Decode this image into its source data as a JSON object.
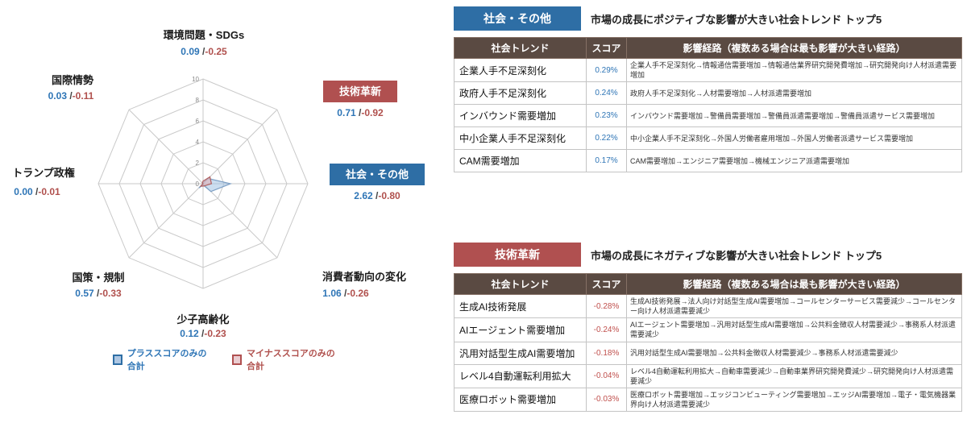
{
  "colors": {
    "accent_blue": "#2e6ea5",
    "accent_red": "#b05050",
    "score_blue": "#2e75b6",
    "score_red": "#c0504d",
    "table_header_bg": "#5a4a42",
    "plus_fill": "#aec7e3",
    "minus_fill": "#eacdd1"
  },
  "chart_data": {
    "type": "radar",
    "value_separator": " /",
    "scale": {
      "min": 0,
      "max": 10,
      "ticks": [
        0,
        2,
        4,
        6,
        8,
        10
      ]
    },
    "axes": [
      {
        "label": "環境問題・SDGs",
        "plus": "0.09",
        "minus": "-0.25",
        "highlight": null
      },
      {
        "label": "技術革新",
        "plus": "0.71",
        "minus": "-0.92",
        "highlight": "red"
      },
      {
        "label": "社会・その他",
        "plus": "2.62",
        "minus": "-0.80",
        "highlight": "blue"
      },
      {
        "label": "消費者動向の変化",
        "plus": "1.06",
        "minus": "-0.26",
        "highlight": null
      },
      {
        "label": "少子高齢化",
        "plus": "0.12",
        "minus": "-0.23",
        "highlight": null
      },
      {
        "label": "国策・規制",
        "plus": "0.57",
        "minus": "-0.33",
        "highlight": null
      },
      {
        "label": "トランプ政権",
        "plus": "0.00",
        "minus": "-0.01",
        "highlight": null
      },
      {
        "label": "国際情勢",
        "plus": "0.03",
        "minus": "-0.11",
        "highlight": null
      }
    ],
    "legend": [
      {
        "label": "プラススコアのみの合計",
        "series": "plus"
      },
      {
        "label": "マイナススコアのみの合計",
        "series": "minus"
      }
    ]
  },
  "tables": [
    {
      "badge": "社会・その他",
      "badge_color": "blue",
      "title": "市場の成長にポジティブな影響が大きい社会トレンド トップ5",
      "columns": [
        "社会トレンド",
        "スコア",
        "影響経路（複数ある場合は最も影響が大きい経路）"
      ],
      "rows": [
        {
          "trend": "企業人手不足深刻化",
          "score": "0.29%",
          "path": "企業人手不足深刻化→情報通信需要増加→情報通信業界研究開発費増加→研究開発向け人材派遣需要増加"
        },
        {
          "trend": "政府人手不足深刻化",
          "score": "0.24%",
          "path": "政府人手不足深刻化→人材需要増加→人材派遣需要増加"
        },
        {
          "trend": "インバウンド需要増加",
          "score": "0.23%",
          "path": "インバウンド需要増加→警備員需要増加→警備員派遣需要増加→警備員派遣サービス需要増加"
        },
        {
          "trend": "中小企業人手不足深刻化",
          "score": "0.22%",
          "path": "中小企業人手不足深刻化→外国人労働者雇用増加→外国人労働者派遣サービス需要増加"
        },
        {
          "trend": "CAM需要増加",
          "score": "0.17%",
          "path": "CAM需要増加→エンジニア需要増加→機械エンジニア派遣需要増加"
        }
      ]
    },
    {
      "badge": "技術革新",
      "badge_color": "red",
      "title": "市場の成長にネガティブな影響が大きい社会トレンド トップ5",
      "columns": [
        "社会トレンド",
        "スコア",
        "影響経路（複数ある場合は最も影響が大きい経路）"
      ],
      "rows": [
        {
          "trend": "生成AI技術発展",
          "score": "-0.28%",
          "path": "生成AI技術発展→法人向け対話型生成AI需要増加→コールセンターサービス需要減少→コールセンター向け人材派遣需要減少"
        },
        {
          "trend": "AIエージェント需要増加",
          "score": "-0.24%",
          "path": "AIエージェント需要増加→汎用対話型生成AI需要増加→公共料金徴収人材需要減少→事務系人材派遣需要減少"
        },
        {
          "trend": "汎用対話型生成AI需要増加",
          "score": "-0.18%",
          "path": "汎用対話型生成AI需要増加→公共料金徴収人材需要減少→事務系人材派遣需要減少"
        },
        {
          "trend": "レベル4自動運転利用拡大",
          "score": "-0.04%",
          "path": "レベル4自動運転利用拡大→自動車需要減少→自動車業界研究開発費減少→研究開発向け人材派遣需要減少"
        },
        {
          "trend": "医療ロボット需要増加",
          "score": "-0.03%",
          "path": "医療ロボット需要増加→エッジコンピューティング需要増加→エッジAI需要増加→電子・電気機器業界向け人材派遣需要減少"
        }
      ]
    }
  ]
}
